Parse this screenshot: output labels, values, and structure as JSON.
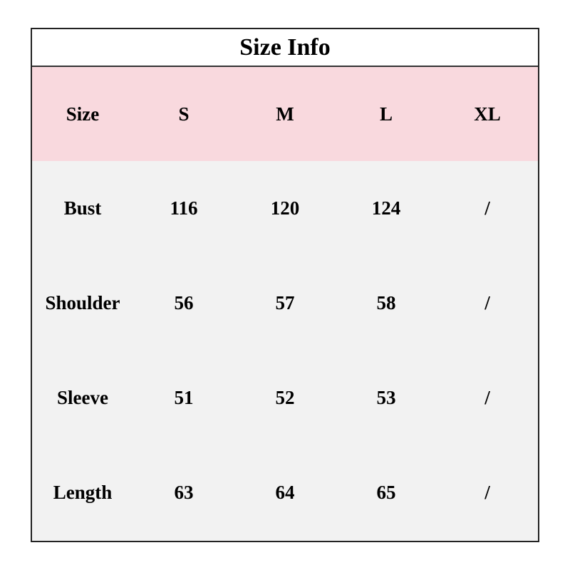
{
  "title": "Size Info",
  "colors": {
    "header_bg": "#f9d9de",
    "body_bg": "#f2f2f2",
    "border": "#222222"
  },
  "header": [
    "Size",
    "S",
    "M",
    "L",
    "XL"
  ],
  "rows": [
    [
      "Bust",
      "116",
      "120",
      "124",
      "/"
    ],
    [
      "Shoulder",
      "56",
      "57",
      "58",
      "/"
    ],
    [
      "Sleeve",
      "51",
      "52",
      "53",
      "/"
    ],
    [
      "Length",
      "63",
      "64",
      "65",
      "/"
    ]
  ]
}
